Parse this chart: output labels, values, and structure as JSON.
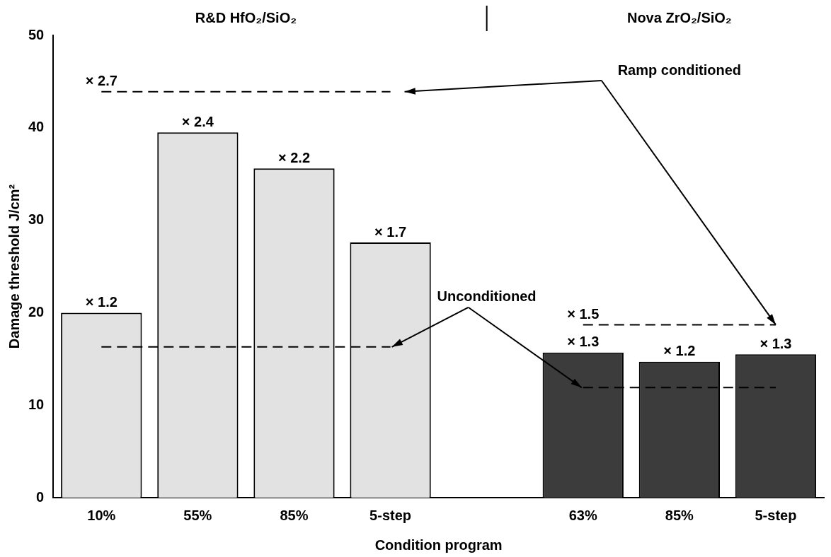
{
  "chart_data": {
    "type": "bar",
    "xlabel": "Condition program",
    "ylabel": "Damage threshold J/cm²",
    "categories": [
      "10%",
      "55%",
      "85%",
      "5-step",
      null,
      "63%",
      "85%",
      "5-step"
    ],
    "series": [
      {
        "colors": [
          "#e2e2e2",
          "#e2e2e2",
          "#e2e2e2",
          "#e2e2e2",
          "#e2e2e2",
          "#3c3c3c",
          "#3c3c3c",
          "#3c3c3c"
        ],
        "values": [
          20.0,
          39.5,
          35.6,
          27.6,
          null,
          15.7,
          14.7,
          15.5
        ]
      },
      {
        "type": "line",
        "name": "Ramp conditioned",
        "color": "#000000",
        "line_style": "dashed",
        "marker": "none",
        "values": [
          43.9,
          43.9,
          43.9,
          43.9,
          null,
          18.7,
          18.7,
          18.7
        ]
      },
      {
        "type": "line",
        "name": "Unconditioned",
        "color": "#000000",
        "line_style": "dashed",
        "marker": "none",
        "values": [
          16.3,
          16.3,
          16.3,
          16.3,
          null,
          11.9,
          11.9,
          11.9
        ]
      }
    ],
    "annotations": [
      "R&D HfO₂/SiO₂",
      "Nova ZrO₂/SiO₂",
      {
        "text": "× 2.7",
        "x": "10%",
        "y": 43.9
      },
      {
        "text": "× 1.5",
        "x": "63%",
        "y": 18.7
      },
      {
        "text": "× 1.2",
        "x": "10%",
        "y": 20.0
      },
      {
        "text": "× 2.4",
        "x": "55%",
        "y": 39.5
      },
      {
        "text": "× 2.2",
        "x": "85%",
        "y": 35.6
      },
      {
        "text": "× 1.7",
        "x": "5-step",
        "y": 27.6
      },
      {
        "text": "× 1.3",
        "x": "63%",
        "y": 15.7
      },
      "× 1.2",
      "× 1.3"
    ],
    "ylim": [
      0,
      50
    ],
    "yticks": [
      0,
      10,
      20,
      30,
      40,
      50
    ],
    "grid": false,
    "legend": false
  }
}
